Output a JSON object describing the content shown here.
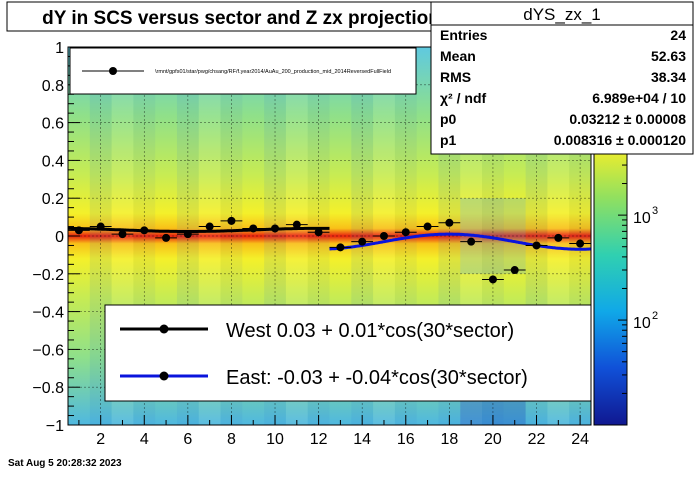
{
  "title": "dY in SCS versus sector and Z zx projection",
  "footer_timestamp": "Sat Aug  5 20:28:32 2023",
  "stats_box": {
    "name": "dYS_zx_1",
    "rows": [
      {
        "label": "Entries",
        "value": "24"
      },
      {
        "label": "Mean",
        "value": "52.63"
      },
      {
        "label": "RMS",
        "value": "38.34"
      },
      {
        "label": "χ² / ndf",
        "value": "6.989e+04 / 10"
      },
      {
        "label": "p0",
        "value": "0.03212 ± 0.00008"
      },
      {
        "label": "p1",
        "value": "0.008316 ± 0.000120"
      }
    ]
  },
  "small_legend": {
    "entry": "\\rmnt/gpfs01/star/pwg/chsang/RF/f.year2014/AuAu_200_production_mid_2014ReversedFullField"
  },
  "big_legend": {
    "west": "West  0.03 +  0.01*cos(30*sector)",
    "east": "East: -0.03 + -0.04*cos(30*sector)"
  },
  "colors": {
    "west_fit": "#000000",
    "east_fit": "#0a14dc",
    "band": "#e82010",
    "markers": "#000000"
  },
  "chart_data": {
    "type": "scatter",
    "xlim": [
      0.5,
      24.5
    ],
    "ylim": [
      -1,
      1
    ],
    "xticks": [
      2,
      4,
      6,
      8,
      10,
      12,
      14,
      16,
      18,
      20,
      22,
      24
    ],
    "yticks": [
      -1,
      -0.8,
      -0.6,
      -0.4,
      -0.2,
      0,
      0.2,
      0.4,
      0.6,
      0.8,
      1
    ],
    "ytick_labels": [
      "−1",
      "−0.8",
      "−0.6",
      "−0.4",
      "−0.2",
      "0",
      "0.2",
      "0.4",
      "0.6",
      "0.8",
      "1"
    ],
    "colorbar": {
      "scale": "log",
      "labels": [
        {
          "text": "10",
          "exp": "2",
          "value": 100
        },
        {
          "text": "10",
          "exp": "3",
          "value": 1000
        },
        {
          "text": "10",
          "exp": "4",
          "value": 10000
        }
      ],
      "range": [
        10,
        40000
      ]
    },
    "points": {
      "x": [
        1,
        2,
        3,
        4,
        5,
        6,
        7,
        8,
        9,
        10,
        11,
        12,
        13,
        14,
        15,
        16,
        17,
        18,
        19,
        20,
        21,
        22,
        23,
        24
      ],
      "y": [
        0.03,
        0.05,
        0.01,
        0.03,
        -0.01,
        0.01,
        0.05,
        0.08,
        0.04,
        0.04,
        0.06,
        0.02,
        -0.06,
        -0.03,
        0.0,
        0.02,
        0.05,
        0.07,
        -0.03,
        -0.23,
        -0.18,
        -0.05,
        -0.01,
        -0.04
      ]
    },
    "fits": [
      {
        "name": "West",
        "p0": 0.03212,
        "p1": 0.008316,
        "xrange": [
          0.5,
          12.5
        ]
      },
      {
        "name": "East",
        "p0": -0.03,
        "p1": -0.04,
        "xrange": [
          12.5,
          24.5
        ]
      }
    ],
    "grid": true
  }
}
